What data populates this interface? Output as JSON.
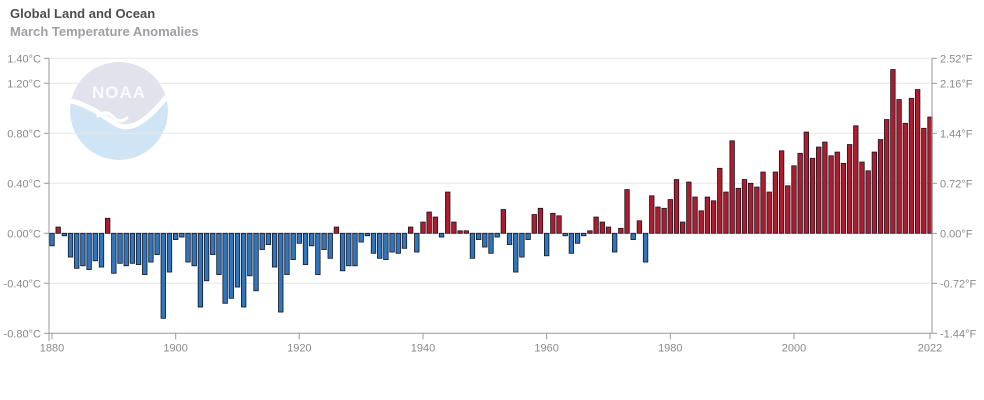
{
  "header": {
    "title": "Global Land and Ocean",
    "subtitle": "March Temperature Anomalies"
  },
  "watermark": {
    "text": "NOAA"
  },
  "chart_data": {
    "type": "bar",
    "title": "Global Land and Ocean",
    "subtitle": "March Temperature Anomalies",
    "x_start_year": 1880,
    "x_end_year": 2022,
    "unit_left": "°C",
    "unit_right": "°F",
    "ylim_c": [
      -0.8,
      1.4
    ],
    "grid": true,
    "legend": "none",
    "y_tick_values_c": [
      1.4,
      1.2,
      0.8,
      0.4,
      0.0,
      -0.4,
      -0.8
    ],
    "y_tick_labels_left": [
      "1.40°C",
      "1.20°C",
      "0.80°C",
      "0.40°C",
      "0.00°C",
      "-0.40°C",
      "-0.80°C"
    ],
    "y_tick_labels_right": [
      "2.52°F",
      "2.16°F",
      "1.44°F",
      "0.72°F",
      "0.00°F",
      "-0.72°F",
      "-1.44°F"
    ],
    "x_tick_years": [
      1880,
      1900,
      1920,
      1940,
      1960,
      1980,
      2000,
      2022
    ],
    "x_tick_labels": [
      "1880",
      "1900",
      "1920",
      "1940",
      "1960",
      "1980",
      "2000",
      "2022"
    ],
    "colors": {
      "positive": "#b01b2e",
      "negative": "#2f76be",
      "bar_outline": "#15151f",
      "axis": "#999999",
      "gridline": "#e6e6e6",
      "zeroline": "#d2d2d2",
      "tick_text": "#8a8a8a"
    },
    "values_c": [
      -0.1,
      0.05,
      -0.02,
      -0.19,
      -0.28,
      -0.26,
      -0.29,
      -0.22,
      -0.27,
      0.12,
      -0.32,
      -0.24,
      -0.26,
      -0.24,
      -0.25,
      -0.33,
      -0.23,
      -0.17,
      -0.68,
      -0.31,
      -0.05,
      -0.03,
      -0.23,
      -0.26,
      -0.59,
      -0.38,
      -0.17,
      -0.33,
      -0.56,
      -0.52,
      -0.43,
      -0.59,
      -0.34,
      -0.46,
      -0.13,
      -0.09,
      -0.27,
      -0.63,
      -0.33,
      -0.21,
      -0.08,
      -0.25,
      -0.1,
      -0.33,
      -0.13,
      -0.2,
      0.05,
      -0.3,
      -0.26,
      -0.26,
      -0.07,
      -0.02,
      -0.16,
      -0.2,
      -0.21,
      -0.15,
      -0.16,
      -0.12,
      0.05,
      -0.15,
      0.09,
      0.17,
      0.13,
      -0.03,
      0.33,
      0.09,
      0.02,
      0.02,
      -0.2,
      -0.05,
      -0.11,
      -0.16,
      -0.03,
      0.19,
      -0.09,
      -0.31,
      -0.19,
      -0.05,
      0.15,
      0.2,
      -0.18,
      0.16,
      0.14,
      -0.02,
      -0.16,
      -0.08,
      -0.02,
      0.02,
      0.13,
      0.09,
      0.05,
      -0.15,
      0.04,
      0.35,
      -0.05,
      0.1,
      -0.23,
      0.3,
      0.21,
      0.2,
      0.27,
      0.43,
      0.09,
      0.41,
      0.29,
      0.18,
      0.29,
      0.26,
      0.52,
      0.33,
      0.74,
      0.36,
      0.43,
      0.4,
      0.37,
      0.49,
      0.33,
      0.49,
      0.66,
      0.38,
      0.54,
      0.64,
      0.81,
      0.6,
      0.69,
      0.73,
      0.62,
      0.65,
      0.56,
      0.71,
      0.86,
      0.57,
      0.5,
      0.65,
      0.75,
      0.91,
      1.31,
      1.07,
      0.88,
      1.08,
      1.15,
      0.84,
      0.93
    ]
  }
}
